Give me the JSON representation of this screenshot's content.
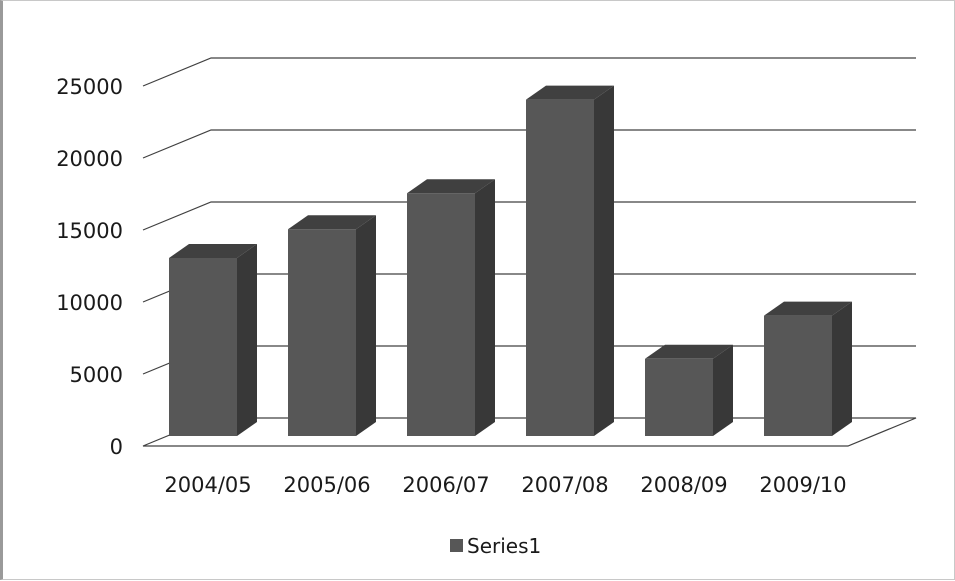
{
  "chart_data": {
    "type": "bar",
    "style": "3d-column",
    "categories": [
      "2004/05",
      "2005/06",
      "2006/07",
      "2007/08",
      "2008/09",
      "2009/10"
    ],
    "series": [
      {
        "name": "Series1",
        "values": [
          12500,
          14500,
          17000,
          23500,
          5500,
          8500
        ]
      }
    ],
    "title": "",
    "xlabel": "",
    "ylabel": "",
    "ylim": [
      0,
      25000
    ],
    "yticks": [
      "0",
      "5000",
      "10000",
      "15000",
      "20000",
      "25000"
    ],
    "grid": true,
    "legend": {
      "position": "bottom",
      "entries": [
        "Series1"
      ]
    },
    "colors": {
      "bar_front": "#575757",
      "bar_side": "#383838",
      "bar_top": "#404040",
      "gridline": "#404040",
      "floor": "#404040"
    }
  }
}
